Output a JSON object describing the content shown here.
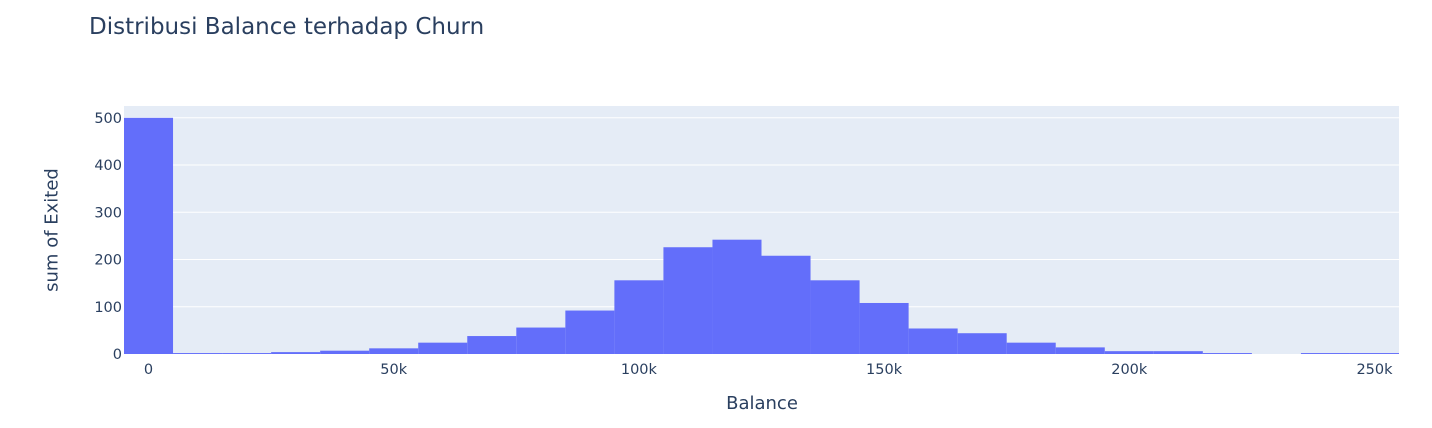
{
  "chart_data": {
    "type": "bar",
    "title": "Distribusi Balance terhadap Churn",
    "xlabel": "Balance",
    "ylabel": "sum of Exited",
    "bin_width": 10000,
    "x_start": -5000,
    "xlim": [
      -5000,
      255000
    ],
    "ylim": [
      0,
      525
    ],
    "x_ticks": [
      0,
      50000,
      100000,
      150000,
      200000,
      250000
    ],
    "x_tick_labels": [
      "0",
      "50k",
      "100k",
      "150k",
      "200k",
      "250k"
    ],
    "y_ticks": [
      0,
      100,
      200,
      300,
      400,
      500
    ],
    "y_tick_labels": [
      "0",
      "100",
      "200",
      "300",
      "400",
      "500"
    ],
    "values": [
      500,
      2,
      2,
      4,
      7,
      12,
      24,
      38,
      56,
      92,
      156,
      226,
      242,
      208,
      156,
      108,
      54,
      44,
      24,
      14,
      6,
      6,
      2,
      0,
      2,
      2
    ],
    "colors": {
      "bar": "#636efa",
      "plot_bg": "#e5ecf6",
      "grid": "#ffffff",
      "text": "#2a3f5f"
    },
    "grid": true
  }
}
